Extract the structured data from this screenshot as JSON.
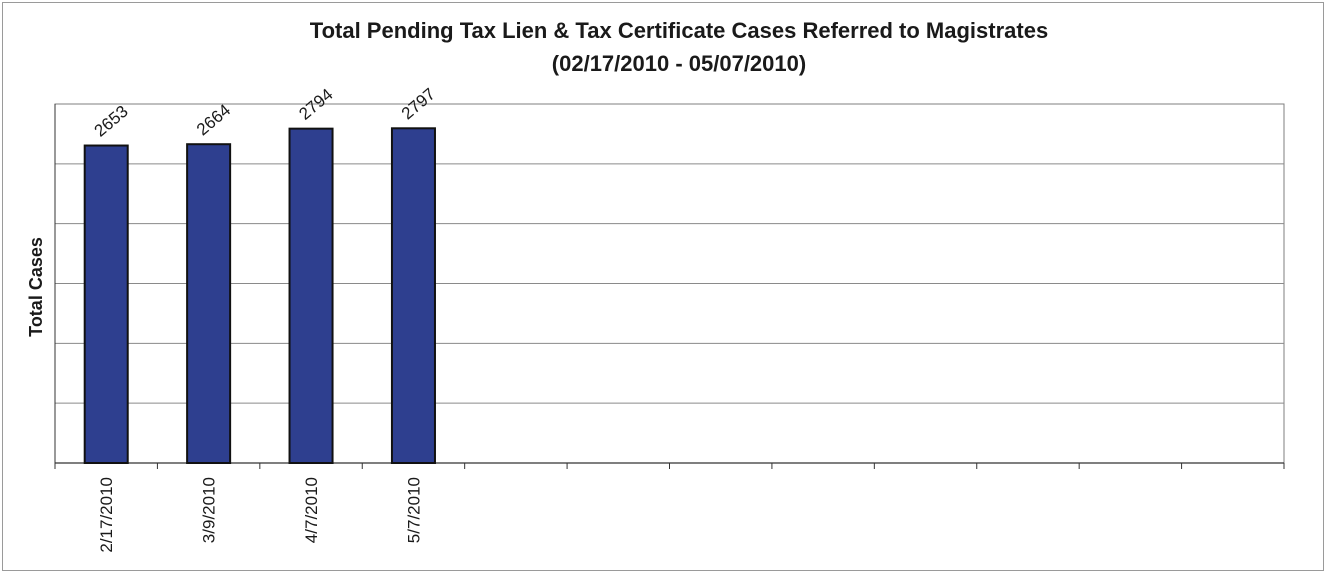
{
  "chart_data": {
    "type": "bar",
    "title": "Total Pending Tax Lien & Tax Certificate Cases Referred to Magistrates",
    "subtitle": "(02/17/2010 - 05/07/2010)",
    "ylabel": "Total Cases",
    "xlabel": "",
    "categories": [
      "2/17/2010",
      "3/9/2010",
      "4/7/2010",
      "5/7/2010"
    ],
    "values": [
      2653,
      2664,
      2794,
      2797
    ],
    "total_slots": 12,
    "ylim": [
      0,
      3000
    ],
    "gridline_count": 6,
    "grid": true,
    "legend": "none",
    "bar_color": "#2e3f8f",
    "bar_border_color": "#111111",
    "data_labels": true
  }
}
